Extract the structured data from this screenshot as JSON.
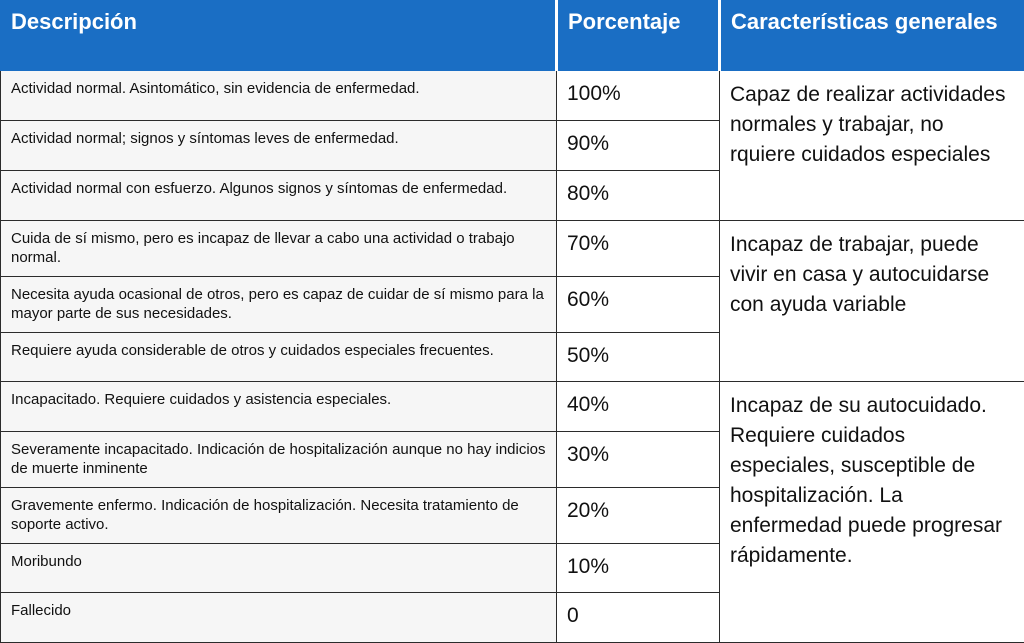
{
  "header": {
    "col1": "Descripción",
    "col2": "Porcentaje",
    "col3": "Características generales"
  },
  "rows": [
    {
      "description": "Actividad normal. Asintomático, sin evidencia de enfermedad.",
      "percent": "100%"
    },
    {
      "description": "Actividad normal; signos y síntomas leves  de enfermedad.",
      "percent": "90%"
    },
    {
      "description": "Actividad normal con esfuerzo. Algunos signos y síntomas de enfermedad.",
      "percent": "80%"
    },
    {
      "description": "Cuida de sí mismo, pero es incapaz de llevar a cabo una actividad o trabajo normal.",
      "percent": "70%"
    },
    {
      "description": "Necesita ayuda ocasional de otros, pero es capaz de  cuidar de sí mismo para la mayor parte de sus necesidades.",
      "percent": "60%"
    },
    {
      "description": "Requiere ayuda considerable de otros y cuidados especiales frecuentes.",
      "percent": "50%"
    },
    {
      "description": "Incapacitado. Requiere cuidados y asistencia especiales.",
      "percent": "40%"
    },
    {
      "description": "Severamente incapacitado. Indicación de hospitalización aunque no hay indicios de muerte inminente",
      "percent": "30%"
    },
    {
      "description": "Gravemente enfermo. Indicación de hospitalización. Necesita tratamiento de soporte  activo.",
      "percent": "20%"
    },
    {
      "description": "Moribundo",
      "percent": "10%"
    },
    {
      "description": "Fallecido",
      "percent": "0"
    }
  ],
  "groups": [
    {
      "characteristics": "Capaz de realizar actividades normales y trabajar, no rquiere cuidados especiales"
    },
    {
      "characteristics": "Incapaz de trabajar, puede vivir en  casa y autocuidarse con ayuda variable"
    },
    {
      "characteristics": "Incapaz de su autocuidado. Requiere cuidados especiales, susceptible de hospitalización. La enfermedad puede progresar rápidamente."
    }
  ],
  "colors": {
    "header_bg": "#1a6ec4",
    "header_text": "#ffffff",
    "desc_bg": "#f6f6f6",
    "border": "#2b2b2b"
  }
}
